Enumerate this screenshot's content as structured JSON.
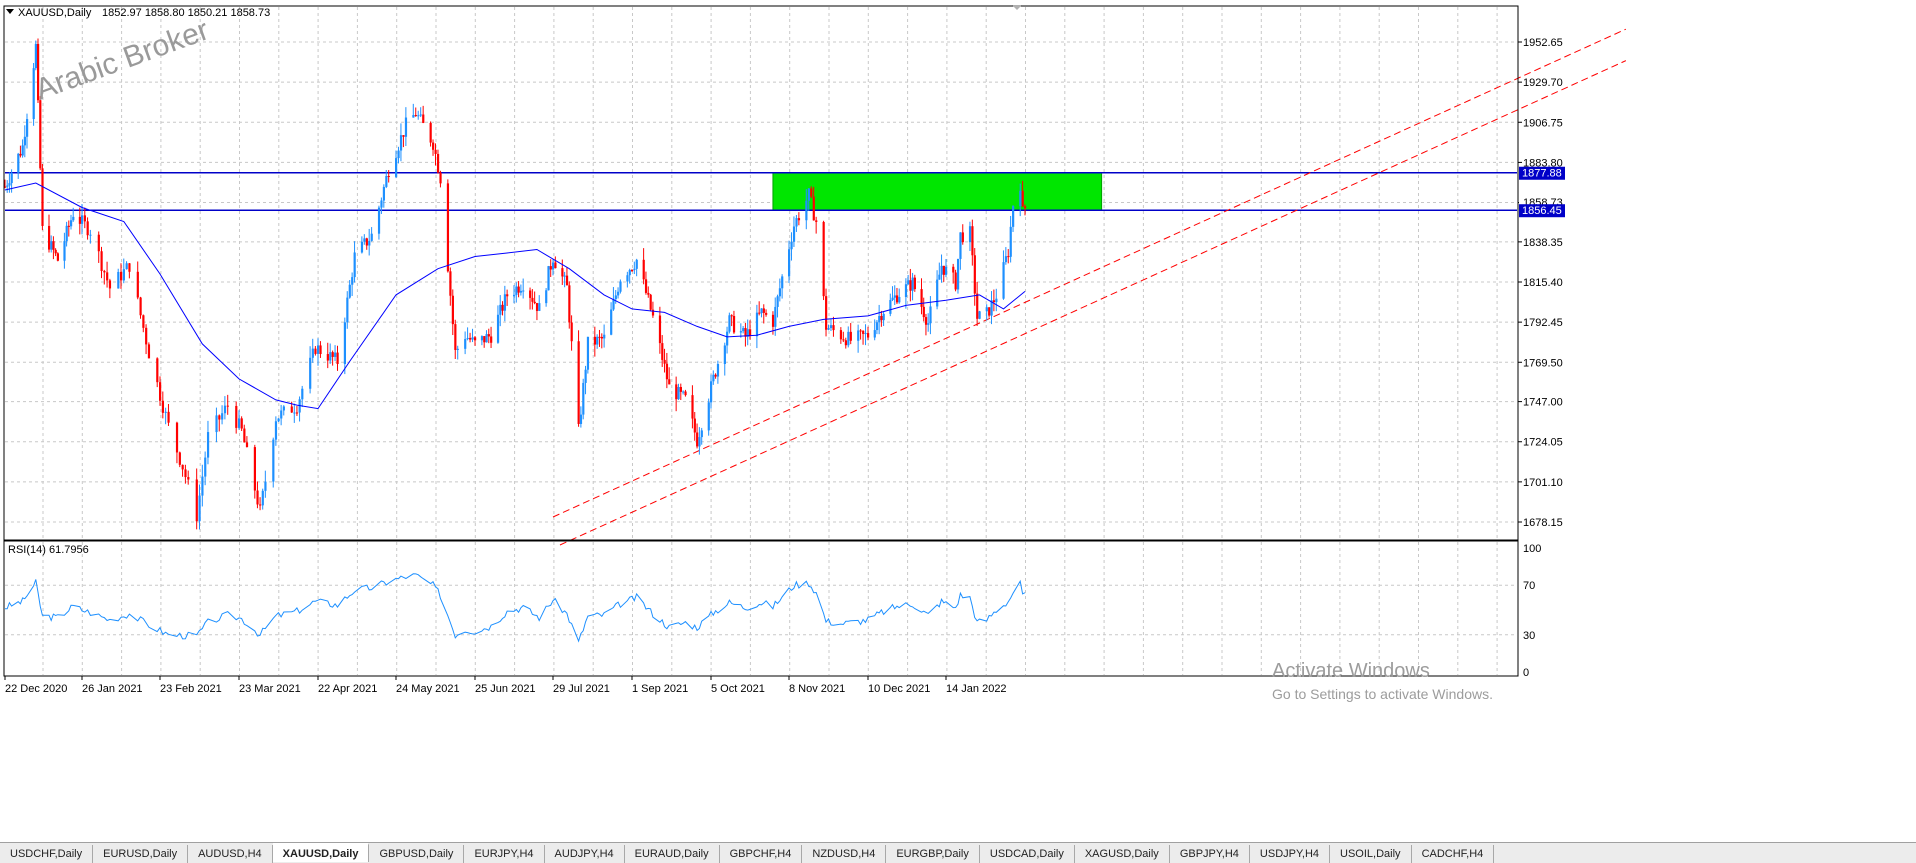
{
  "chart_header": {
    "menu_arrow": "dropdown-triangle-icon",
    "symbol_timeframe": "XAUUSD,Daily",
    "ohlc": "1852.97 1858.80 1850.21 1858.73"
  },
  "watermark": "Arabic Broker",
  "activation": {
    "title": "Activate Windows",
    "subtitle": "Go to Settings to activate Windows."
  },
  "chart_data": [
    {
      "type": "candlestick",
      "symbol": "XAUUSD",
      "timeframe": "Daily",
      "ylim": [
        1665,
        1967
      ],
      "y_ticks": [
        "1952.65",
        "1929.70",
        "1906.75",
        "1883.80",
        "1860.85",
        "1838.35",
        "1815.40",
        "1792.45",
        "1769.50",
        "1747.00",
        "1724.05",
        "1701.10",
        "1678.15"
      ],
      "x_ticks": [
        "22 Dec 2020",
        "26 Jan 2021",
        "23 Feb 2021",
        "23 Mar 2021",
        "22 Apr 2021",
        "24 May 2021",
        "25 Jun 2021",
        "29 Jul 2021",
        "1 Sep 2021",
        "5 Oct 2021",
        "8 Nov 2021",
        "10 Dec 2021",
        "14 Jan 2022"
      ],
      "grid": true,
      "price_path": [
        [
          "22 Dec 2020",
          1870
        ],
        [
          "30 Dec 2020",
          1893
        ],
        [
          "5 Jan 2021",
          1950
        ],
        [
          "8 Jan 2021",
          1845
        ],
        [
          "15 Jan 2021",
          1828
        ],
        [
          "22 Jan 2021",
          1855
        ],
        [
          "29 Jan 2021",
          1845
        ],
        [
          "5 Feb 2021",
          1812
        ],
        [
          "12 Feb 2021",
          1825
        ],
        [
          "19 Feb 2021",
          1775
        ],
        [
          "26 Feb 2021",
          1733
        ],
        [
          "3 Mar 2021",
          1710
        ],
        [
          "8 Mar 2021",
          1682
        ],
        [
          "12 Mar 2021",
          1727
        ],
        [
          "19 Mar 2021",
          1745
        ],
        [
          "24 Mar 2021",
          1730
        ],
        [
          "31 Mar 2021",
          1684
        ],
        [
          "6 Apr 2021",
          1738
        ],
        [
          "14 Apr 2021",
          1745
        ],
        [
          "21 Apr 2021",
          1778
        ],
        [
          "30 Apr 2021",
          1770
        ],
        [
          "7 May 2021",
          1830
        ],
        [
          "14 May 2021",
          1842
        ],
        [
          "21 May 2021",
          1880
        ],
        [
          "28 May 2021",
          1905
        ],
        [
          "1 Jun 2021",
          1912
        ],
        [
          "8 Jun 2021",
          1895
        ],
        [
          "11 Jun 2021",
          1875
        ],
        [
          "17 Jun 2021",
          1775
        ],
        [
          "21 Jun 2021",
          1785
        ],
        [
          "25 Jun 2021",
          1780
        ],
        [
          "2 Jul 2021",
          1785
        ],
        [
          "9 Jul 2021",
          1808
        ],
        [
          "16 Jul 2021",
          1815
        ],
        [
          "23 Jul 2021",
          1800
        ],
        [
          "29 Jul 2021",
          1830
        ],
        [
          "4 Aug 2021",
          1812
        ],
        [
          "9 Aug 2021",
          1730
        ],
        [
          "13 Aug 2021",
          1780
        ],
        [
          "20 Aug 2021",
          1783
        ],
        [
          "27 Aug 2021",
          1818
        ],
        [
          "3 Sep 2021",
          1828
        ],
        [
          "10 Sep 2021",
          1795
        ],
        [
          "17 Sep 2021",
          1755
        ],
        [
          "24 Sep 2021",
          1748
        ],
        [
          "29 Sep 2021",
          1725
        ],
        [
          "6 Oct 2021",
          1760
        ],
        [
          "13 Oct 2021",
          1793
        ],
        [
          "20 Oct 2021",
          1784
        ],
        [
          "27 Oct 2021",
          1798
        ],
        [
          "1 Nov 2021",
          1793
        ],
        [
          "5 Nov 2021",
          1818
        ],
        [
          "10 Nov 2021",
          1848
        ],
        [
          "16 Nov 2021",
          1865
        ],
        [
          "19 Nov 2021",
          1850
        ],
        [
          "23 Nov 2021",
          1790
        ],
        [
          "29 Nov 2021",
          1785
        ],
        [
          "3 Dec 2021",
          1782
        ],
        [
          "10 Dec 2021",
          1785
        ],
        [
          "16 Dec 2021",
          1798
        ],
        [
          "23 Dec 2021",
          1808
        ],
        [
          "30 Dec 2021",
          1815
        ],
        [
          "6 Jan 2022",
          1792
        ],
        [
          "12 Jan 2022",
          1825
        ],
        [
          "18 Jan 2022",
          1815
        ],
        [
          "20 Jan 2022",
          1842
        ],
        [
          "24 Jan 2022",
          1843
        ],
        [
          "27 Jan 2022",
          1795
        ],
        [
          "31 Jan 2022",
          1797
        ],
        [
          "4 Feb 2022",
          1808
        ],
        [
          "9 Feb 2022",
          1833
        ],
        [
          "11 Feb 2022",
          1860
        ],
        [
          "14 Feb 2022",
          1872
        ],
        [
          "15 Feb 2022",
          1855
        ],
        [
          "16 Feb 2022",
          1858
        ]
      ],
      "moving_average": [
        [
          "22 Dec 2020",
          1868
        ],
        [
          "5 Jan 2021",
          1872
        ],
        [
          "26 Jan 2021",
          1858
        ],
        [
          "10 Feb 2021",
          1850
        ],
        [
          "23 Feb 2021",
          1820
        ],
        [
          "10 Mar 2021",
          1780
        ],
        [
          "23 Mar 2021",
          1760
        ],
        [
          "6 Apr 2021",
          1748
        ],
        [
          "14 Apr 2021",
          1745
        ],
        [
          "22 Apr 2021",
          1743
        ],
        [
          "5 May 2021",
          1770
        ],
        [
          "24 May 2021",
          1808
        ],
        [
          "10 Jun 2021",
          1823
        ],
        [
          "25 Jun 2021",
          1830
        ],
        [
          "9 Jul 2021",
          1832
        ],
        [
          "22 Jul 2021",
          1834
        ],
        [
          "5 Aug 2021",
          1823
        ],
        [
          "20 Aug 2021",
          1808
        ],
        [
          "1 Sep 2021",
          1800
        ],
        [
          "15 Sep 2021",
          1798
        ],
        [
          "29 Sep 2021",
          1790
        ],
        [
          "12 Oct 2021",
          1784
        ],
        [
          "25 Oct 2021",
          1785
        ],
        [
          "8 Nov 2021",
          1790
        ],
        [
          "22 Nov 2021",
          1794
        ],
        [
          "10 Dec 2021",
          1796
        ],
        [
          "27 Dec 2021",
          1802
        ],
        [
          "14 Jan 2022",
          1805
        ],
        [
          "28 Jan 2022",
          1808
        ],
        [
          "7 Feb 2022",
          1800
        ],
        [
          "16 Feb 2022",
          1810
        ]
      ],
      "levels": {
        "resistance": 1877.88,
        "support": 1856.45,
        "resistance_label": "1877.88",
        "support_label": "1856.45",
        "support_label_overlap": "1858.73"
      },
      "zone": {
        "from": "1 Nov 2021",
        "to": "20 Mar 2022",
        "low": 1856.45,
        "high": 1877.88,
        "color": "#00e600"
      },
      "trendlines": [
        {
          "x1": "29 Jul 2021",
          "y1": 1681,
          "x2": "25 Oct 2022",
          "y2": 1960
        },
        {
          "x1": "1 Aug 2021",
          "y1": 1665,
          "x2": "25 Oct 2022",
          "y2": 1942
        }
      ],
      "colors": {
        "bull": "#1e90ff",
        "bear": "#ff0000",
        "ma": "#0000ff",
        "level": "#0000c8",
        "trend": "#ff0000"
      }
    },
    {
      "type": "line",
      "name": "RSI(14)",
      "label": "RSI(14) 61.7956",
      "ylim": [
        0,
        100
      ],
      "y_ticks": [
        "100",
        "70",
        "30",
        "0"
      ],
      "grid": true,
      "color": "#1e90ff",
      "series": [
        [
          "22 Dec 2020",
          52
        ],
        [
          "30 Dec 2020",
          57
        ],
        [
          "5 Jan 2021",
          72
        ],
        [
          "8 Jan 2021",
          45
        ],
        [
          "15 Jan 2021",
          44
        ],
        [
          "22 Jan 2021",
          53
        ],
        [
          "29 Jan 2021",
          48
        ],
        [
          "5 Feb 2021",
          42
        ],
        [
          "12 Feb 2021",
          47
        ],
        [
          "19 Feb 2021",
          38
        ],
        [
          "26 Feb 2021",
          30
        ],
        [
          "8 Mar 2021",
          29
        ],
        [
          "12 Mar 2021",
          40
        ],
        [
          "19 Mar 2021",
          46
        ],
        [
          "24 Mar 2021",
          43
        ],
        [
          "31 Mar 2021",
          30
        ],
        [
          "6 Apr 2021",
          45
        ],
        [
          "14 Apr 2021",
          49
        ],
        [
          "21 Apr 2021",
          57
        ],
        [
          "30 Apr 2021",
          54
        ],
        [
          "7 May 2021",
          66
        ],
        [
          "14 May 2021",
          68
        ],
        [
          "21 May 2021",
          73
        ],
        [
          "28 May 2021",
          77
        ],
        [
          "1 Jun 2021",
          78
        ],
        [
          "8 Jun 2021",
          70
        ],
        [
          "11 Jun 2021",
          62
        ],
        [
          "17 Jun 2021",
          30
        ],
        [
          "21 Jun 2021",
          34
        ],
        [
          "25 Jun 2021",
          33
        ],
        [
          "2 Jul 2021",
          37
        ],
        [
          "9 Jul 2021",
          49
        ],
        [
          "16 Jul 2021",
          52
        ],
        [
          "23 Jul 2021",
          44
        ],
        [
          "29 Jul 2021",
          58
        ],
        [
          "4 Aug 2021",
          47
        ],
        [
          "9 Aug 2021",
          24
        ],
        [
          "13 Aug 2021",
          45
        ],
        [
          "20 Aug 2021",
          46
        ],
        [
          "27 Aug 2021",
          55
        ],
        [
          "3 Sep 2021",
          60
        ],
        [
          "10 Sep 2021",
          47
        ],
        [
          "17 Sep 2021",
          36
        ],
        [
          "24 Sep 2021",
          40
        ],
        [
          "29 Sep 2021",
          36
        ],
        [
          "6 Oct 2021",
          48
        ],
        [
          "13 Oct 2021",
          56
        ],
        [
          "20 Oct 2021",
          52
        ],
        [
          "27 Oct 2021",
          56
        ],
        [
          "1 Nov 2021",
          53
        ],
        [
          "5 Nov 2021",
          60
        ],
        [
          "10 Nov 2021",
          70
        ],
        [
          "16 Nov 2021",
          72
        ],
        [
          "19 Nov 2021",
          64
        ],
        [
          "23 Nov 2021",
          41
        ],
        [
          "29 Nov 2021",
          39
        ],
        [
          "3 Dec 2021",
          40
        ],
        [
          "10 Dec 2021",
          42
        ],
        [
          "16 Dec 2021",
          48
        ],
        [
          "23 Dec 2021",
          53
        ],
        [
          "30 Dec 2021",
          55
        ],
        [
          "6 Jan 2022",
          46
        ],
        [
          "12 Jan 2022",
          57
        ],
        [
          "18 Jan 2022",
          52
        ],
        [
          "20 Jan 2022",
          62
        ],
        [
          "24 Jan 2022",
          60
        ],
        [
          "27 Jan 2022",
          40
        ],
        [
          "31 Jan 2022",
          42
        ],
        [
          "4 Feb 2022",
          50
        ],
        [
          "9 Feb 2022",
          57
        ],
        [
          "11 Feb 2022",
          64
        ],
        [
          "14 Feb 2022",
          71
        ],
        [
          "15 Feb 2022",
          62
        ],
        [
          "16 Feb 2022",
          61.8
        ]
      ]
    }
  ],
  "tabs": [
    {
      "label": "USDCHF,Daily"
    },
    {
      "label": "EURUSD,Daily"
    },
    {
      "label": "AUDUSD,H4"
    },
    {
      "label": "XAUUSD,Daily",
      "active": true
    },
    {
      "label": "GBPUSD,Daily"
    },
    {
      "label": "EURJPY,H4"
    },
    {
      "label": "AUDJPY,H4"
    },
    {
      "label": "EURAUD,Daily"
    },
    {
      "label": "GBPCHF,H4"
    },
    {
      "label": "NZDUSD,H4"
    },
    {
      "label": "EURGBP,Daily"
    },
    {
      "label": "USDCAD,Daily"
    },
    {
      "label": "XAGUSD,Daily"
    },
    {
      "label": "GBPJPY,H4"
    },
    {
      "label": "USDJPY,H4"
    },
    {
      "label": "USOIL,Daily"
    },
    {
      "label": "CADCHF,H4"
    }
  ]
}
